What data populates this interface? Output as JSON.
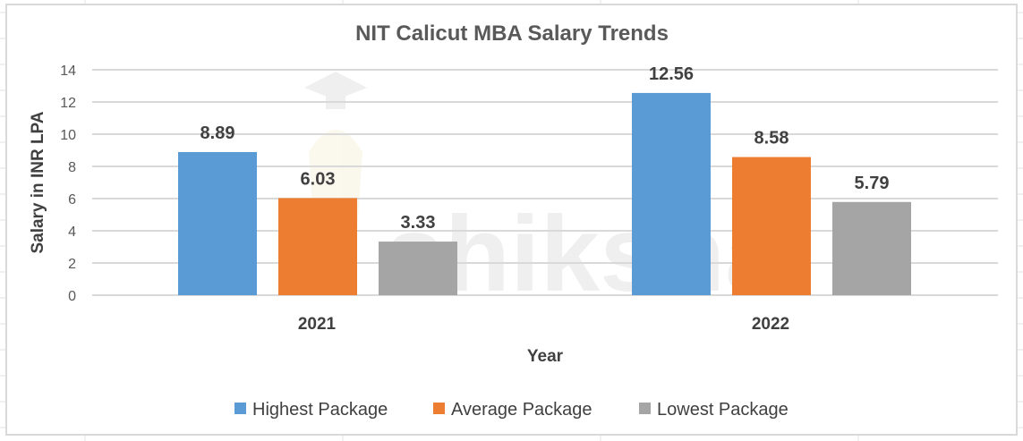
{
  "chart_data": {
    "type": "bar",
    "title": "NIT Calicut MBA Salary Trends",
    "xlabel": "Year",
    "ylabel": "Salary in INR LPA",
    "categories": [
      "2021",
      "2022"
    ],
    "series": [
      {
        "name": "Highest Package",
        "color": "#5b9bd5",
        "values": [
          8.89,
          12.56
        ]
      },
      {
        "name": "Average Package",
        "color": "#ed7d31",
        "values": [
          6.03,
          8.58
        ]
      },
      {
        "name": "Lowest Package",
        "color": "#a5a5a5",
        "values": [
          3.33,
          5.79
        ]
      }
    ],
    "data_labels": [
      [
        "8.89",
        "12.56"
      ],
      [
        "6.03",
        "8.58"
      ],
      [
        "3.33",
        "5.79"
      ]
    ],
    "yticks": [
      0,
      2,
      4,
      6,
      8,
      10,
      12,
      14
    ],
    "ylim": [
      0,
      14
    ],
    "grid": true,
    "legend_position": "bottom"
  },
  "watermark": "shiksha"
}
